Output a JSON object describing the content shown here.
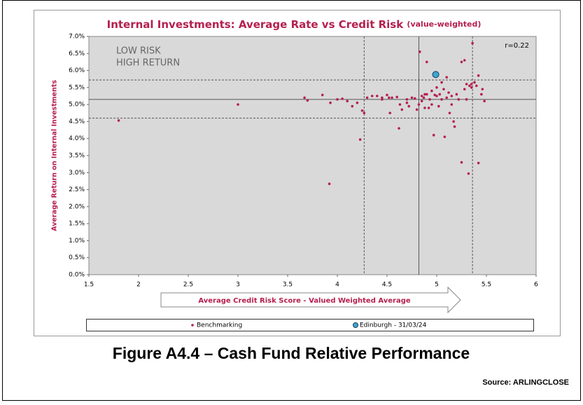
{
  "chart_data": {
    "type": "scatter",
    "title": "Internal Investments: Average Rate vs Credit Risk",
    "subtitle": "(value-weighted)",
    "x_label": "Average Credit Risk Score - Valued Weighted Average",
    "y_label": "Average Return on Internal Investments",
    "annotations": [
      "LOW RISK",
      "HIGH RETURN",
      "r=0.22"
    ],
    "xlim": [
      1.5,
      6
    ],
    "xticks": [
      1.5,
      2,
      2.5,
      3,
      3.5,
      4,
      4.5,
      5,
      5.5,
      6
    ],
    "ylim": [
      0,
      7
    ],
    "yticks": [
      {
        "value": 0,
        "label": "0.0%"
      },
      {
        "value": 0.5,
        "label": "0.5%"
      },
      {
        "value": 1,
        "label": "1.0%"
      },
      {
        "value": 1.5,
        "label": "1.5%"
      },
      {
        "value": 2,
        "label": "2.0%"
      },
      {
        "value": 2.5,
        "label": "2.5%"
      },
      {
        "value": 3,
        "label": "3.0%"
      },
      {
        "value": 3.5,
        "label": "3.5%"
      },
      {
        "value": 4,
        "label": "4.0%"
      },
      {
        "value": 4.5,
        "label": "4.5%"
      },
      {
        "value": 5,
        "label": "5.0%"
      },
      {
        "value": 5.5,
        "label": "5.5%"
      },
      {
        "value": 6,
        "label": "6.0%"
      },
      {
        "value": 6.5,
        "label": "6.5%"
      },
      {
        "value": 7,
        "label": "7.0%"
      }
    ],
    "vlines": [
      {
        "value": 4.27,
        "style": "dashed"
      },
      {
        "value": 4.82,
        "style": "solid"
      },
      {
        "value": 5.36,
        "style": "dashed"
      }
    ],
    "hlines": [
      {
        "value": 5.72,
        "style": "dashed"
      },
      {
        "value": 5.15,
        "style": "solid"
      },
      {
        "value": 4.6,
        "style": "dashed"
      }
    ],
    "series": [
      {
        "name": "Benchmarking",
        "color": "#b5204f",
        "x": [
          1.8,
          3.0,
          3.67,
          3.7,
          3.85,
          3.93,
          3.92,
          4.0,
          4.05,
          4.1,
          4.15,
          4.2,
          4.23,
          4.25,
          4.27,
          4.3,
          4.35,
          4.4,
          4.45,
          4.5,
          4.52,
          4.53,
          4.55,
          4.6,
          4.62,
          4.63,
          4.65,
          4.7,
          4.72,
          4.75,
          4.78,
          4.8,
          4.82,
          4.83,
          4.85,
          4.87,
          4.88,
          4.9,
          4.9,
          4.92,
          4.93,
          4.95,
          4.95,
          4.97,
          4.98,
          5.0,
          5.0,
          5.02,
          5.03,
          5.05,
          5.05,
          5.07,
          5.08,
          5.1,
          5.1,
          5.12,
          5.13,
          5.15,
          5.17,
          5.18,
          5.2,
          5.22,
          5.25,
          5.25,
          5.28,
          5.3,
          5.32,
          5.33,
          5.35,
          5.36,
          5.38,
          5.4,
          5.42,
          5.42,
          5.45,
          5.46,
          5.48,
          5.3,
          5.28,
          5.35,
          4.7,
          4.88,
          5.15,
          4.45,
          4.85
        ],
        "values": [
          4.53,
          5.0,
          5.2,
          5.12,
          5.28,
          5.05,
          2.67,
          5.15,
          5.17,
          5.1,
          4.95,
          5.05,
          3.97,
          4.82,
          4.75,
          5.2,
          5.25,
          5.25,
          5.2,
          5.28,
          5.2,
          4.75,
          5.2,
          5.22,
          4.3,
          5.0,
          4.85,
          5.15,
          4.95,
          5.2,
          5.18,
          4.85,
          5.0,
          6.55,
          5.25,
          5.2,
          5.3,
          5.3,
          6.25,
          4.9,
          5.15,
          5.4,
          5.0,
          4.1,
          5.28,
          5.25,
          5.5,
          4.95,
          5.3,
          5.15,
          5.65,
          5.45,
          4.05,
          5.8,
          5.2,
          5.35,
          4.75,
          5.25,
          4.5,
          4.35,
          5.3,
          5.15,
          6.25,
          3.3,
          6.3,
          5.6,
          2.97,
          5.55,
          5.6,
          6.8,
          5.65,
          5.55,
          5.85,
          3.28,
          5.3,
          5.45,
          5.1,
          5.15,
          5.45,
          5.5,
          5.05,
          4.9,
          5.0,
          5.15,
          5.1
        ]
      },
      {
        "name": "Edinburgh - 31/03/24",
        "color": "#3ea6cf",
        "x": [
          4.99
        ],
        "values": [
          5.88
        ]
      }
    ],
    "figure_caption": "Figure A4.4 – Cash Fund Relative Performance",
    "source": "Source: ARLINGCLOSE"
  }
}
